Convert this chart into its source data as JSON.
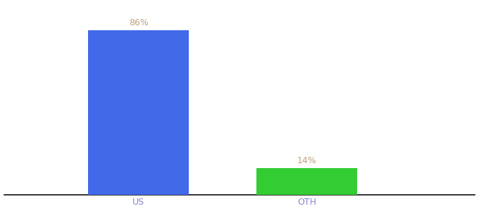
{
  "categories": [
    "US",
    "OTH"
  ],
  "values": [
    86,
    14
  ],
  "bar_colors": [
    "#4169e8",
    "#33cc33"
  ],
  "label_texts": [
    "86%",
    "14%"
  ],
  "label_color": "#c0a080",
  "label_fontsize": 9,
  "tick_fontsize": 9,
  "tick_color": "#8888cc",
  "background_color": "#ffffff",
  "ylim": [
    0,
    100
  ],
  "bar_width": 0.18,
  "x_positions": [
    0.32,
    0.62
  ]
}
